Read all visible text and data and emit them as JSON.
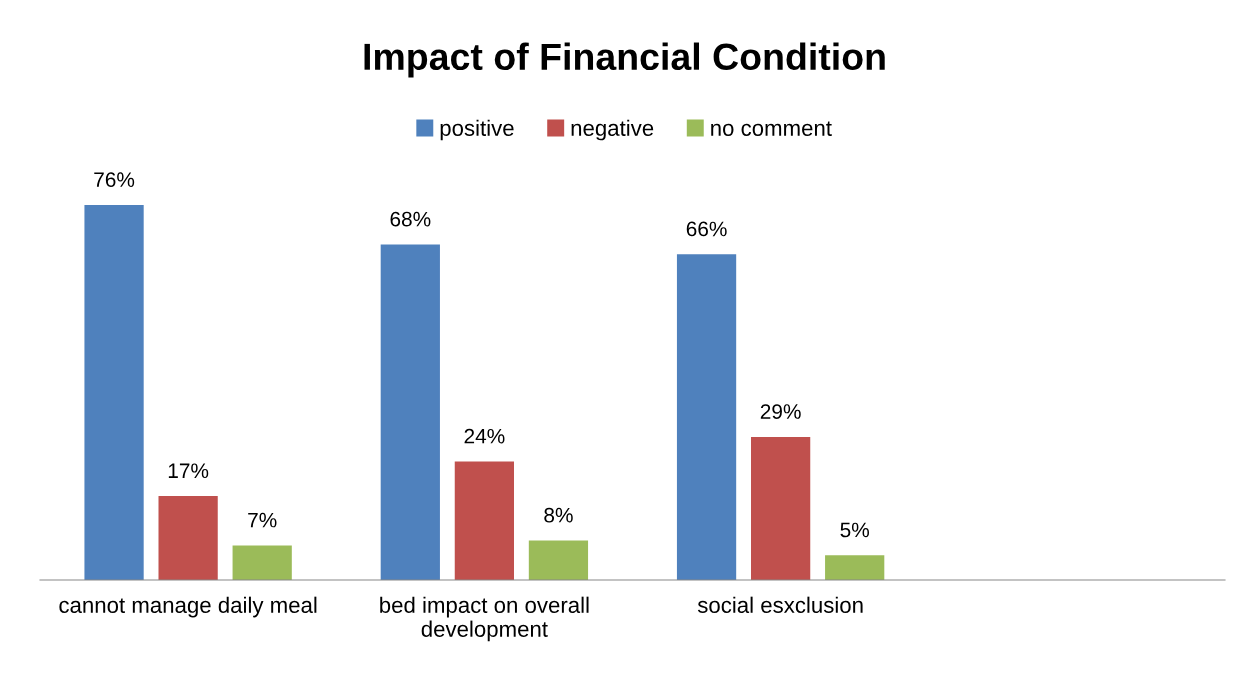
{
  "chart_data": {
    "type": "bar",
    "title": "Impact of Financial Condition",
    "categories": [
      "cannot manage daily meal",
      "bed impact on overall\ndevelopment",
      "social esxclusion",
      null
    ],
    "series": [
      {
        "name": "positive",
        "color": "#4f81bd",
        "values": [
          76,
          68,
          66,
          null
        ],
        "value_labels": [
          "76%",
          "68%",
          "66%",
          null
        ]
      },
      {
        "name": "negative",
        "color": "#c0504d",
        "values": [
          17,
          24,
          29,
          null
        ],
        "value_labels": [
          "17%",
          "24%",
          "29%",
          null
        ]
      },
      {
        "name": "no comment",
        "color": "#9bbb59",
        "values": [
          7,
          8,
          5,
          null
        ],
        "value_labels": [
          "7%",
          "8%",
          "5%",
          null
        ]
      }
    ],
    "legend": "top",
    "grid": false
  }
}
